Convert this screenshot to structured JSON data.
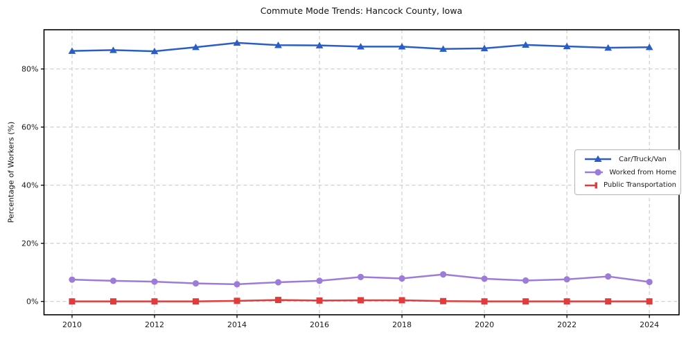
{
  "chart_data": {
    "type": "line",
    "title": "Commute Mode Trends: Hancock County, Iowa",
    "xlabel": "",
    "ylabel": "Percentage of Workers (%)",
    "x": [
      2010,
      2011,
      2012,
      2013,
      2014,
      2015,
      2016,
      2017,
      2018,
      2019,
      2020,
      2021,
      2022,
      2023,
      2024
    ],
    "series": [
      {
        "name": "Car/Truck/Van",
        "marker": "triangle",
        "color": "#2a5ec6",
        "values": [
          86.2,
          86.5,
          86.1,
          87.5,
          89.0,
          88.2,
          88.1,
          87.7,
          87.7,
          86.9,
          87.1,
          88.3,
          87.8,
          87.3,
          87.5
        ]
      },
      {
        "name": "Worked from Home",
        "marker": "circle",
        "color": "#9d7bd8",
        "values": [
          7.5,
          7.1,
          6.8,
          6.2,
          5.9,
          6.6,
          7.1,
          8.4,
          7.9,
          9.3,
          7.8,
          7.2,
          7.6,
          8.6,
          6.7
        ]
      },
      {
        "name": "Public Transportation",
        "marker": "square",
        "color": "#e23b3b",
        "values": [
          0.0,
          0.0,
          0.0,
          0.0,
          0.2,
          0.5,
          0.3,
          0.4,
          0.4,
          0.1,
          0.0,
          0.0,
          0.0,
          0.0,
          0.0
        ]
      }
    ],
    "xticks": [
      2010,
      2012,
      2014,
      2016,
      2018,
      2020,
      2022,
      2024
    ],
    "yticks": [
      0,
      20,
      40,
      60,
      80
    ],
    "ytick_suffix": "%",
    "xlim": [
      2009.32,
      2024.72
    ],
    "ylim": [
      -4.6,
      93.5
    ],
    "grid": true,
    "legend_position": "center right"
  },
  "colors": {
    "background": "#ffffff",
    "axis": "#000000",
    "grid": "#c9c9c9",
    "text": "#1a1a1a"
  }
}
